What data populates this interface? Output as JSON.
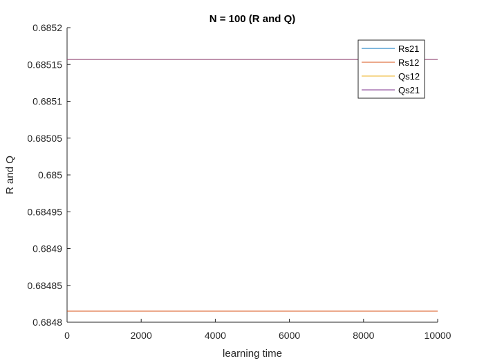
{
  "chart_data": {
    "type": "line",
    "title": "N = 100 (R and Q)",
    "xlabel": "learning time",
    "ylabel": "R and Q",
    "xlim": [
      0,
      10000
    ],
    "ylim": [
      0.6848,
      0.6852
    ],
    "xticks": [
      0,
      2000,
      4000,
      6000,
      8000,
      10000
    ],
    "xtick_labels": [
      "0",
      "2000",
      "4000",
      "6000",
      "8000",
      "10000"
    ],
    "yticks": [
      0.6848,
      0.68485,
      0.6849,
      0.68495,
      0.685,
      0.68505,
      0.6851,
      0.68515,
      0.6852
    ],
    "ytick_labels": [
      "0.6848",
      "0.68485",
      "0.6849",
      "0.68495",
      "0.685",
      "0.68505",
      "0.6851",
      "0.68515",
      "0.6852"
    ],
    "grid": false,
    "legend_position": "top-right",
    "series": [
      {
        "name": "Rs21",
        "color": "#0072BD",
        "x": [
          0,
          10000
        ],
        "y": [
          0.684815,
          0.684815
        ]
      },
      {
        "name": "Rs12",
        "color": "#D95319",
        "x": [
          0,
          10000
        ],
        "y": [
          0.684815,
          0.684815
        ]
      },
      {
        "name": "Qs12",
        "color": "#EDB120",
        "x": [
          0,
          10000
        ],
        "y": [
          0.685157,
          0.685157
        ]
      },
      {
        "name": "Qs21",
        "color": "#7E2F8E",
        "x": [
          0,
          10000
        ],
        "y": [
          0.685157,
          0.685157
        ]
      }
    ]
  }
}
